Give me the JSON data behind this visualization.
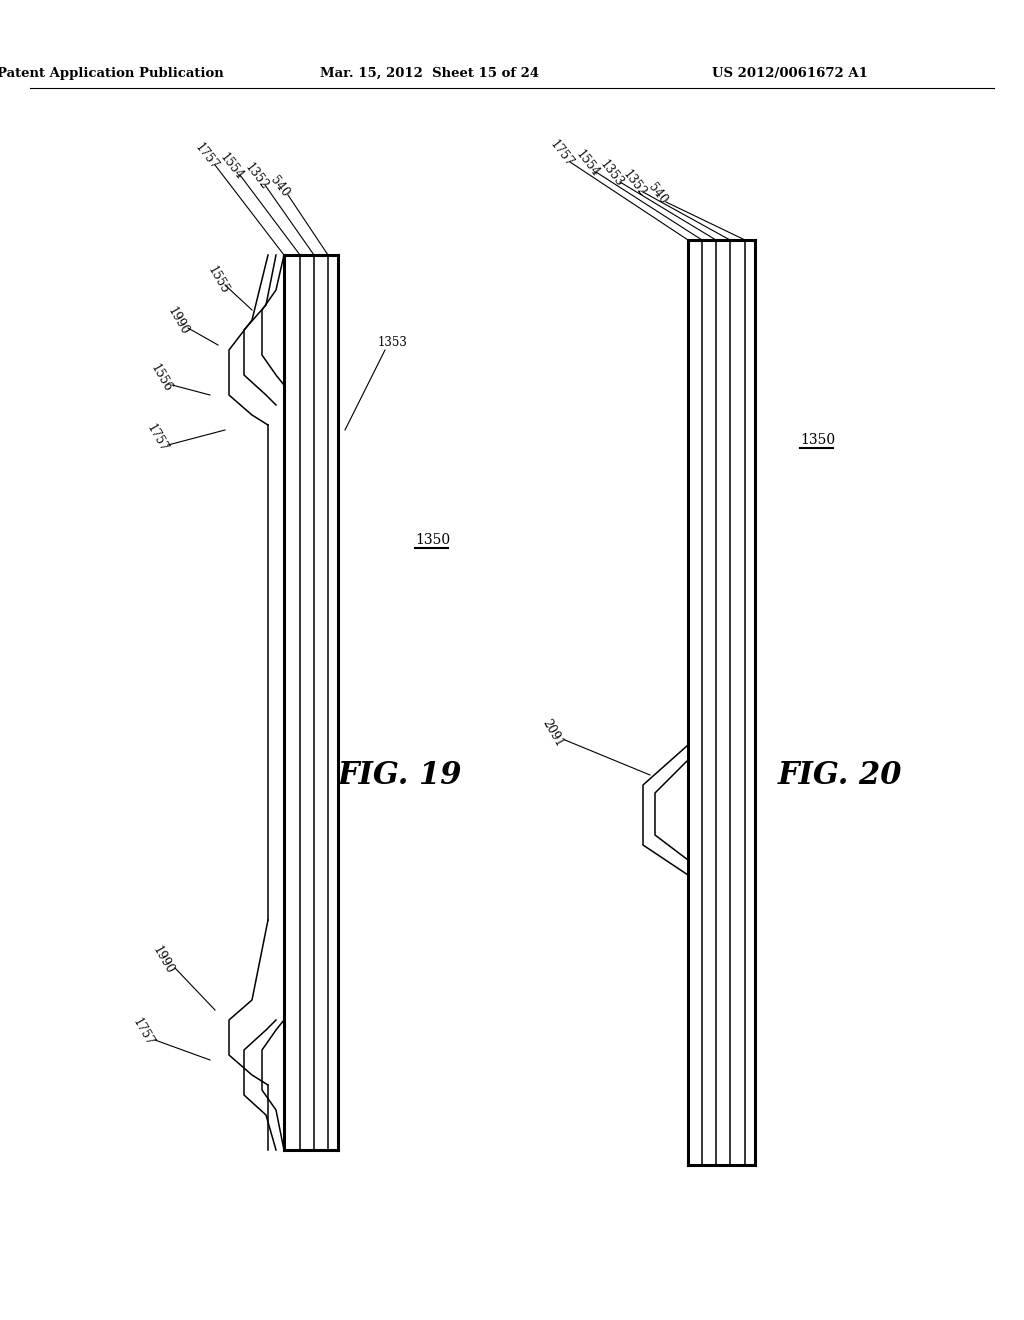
{
  "bg_color": "#ffffff",
  "header_left": "Patent Application Publication",
  "header_mid": "Mar. 15, 2012  Sheet 15 of 24",
  "header_right": "US 2012/0061672 A1",
  "fig19_label": "FIG. 19",
  "fig20_label": "FIG. 20",
  "fig19_ref": "1350",
  "fig20_ref": "1350",
  "labels_fig19_top": [
    "1757",
    "1554",
    "1352",
    "540"
  ],
  "label_1353_fig19": "1353",
  "labels_fig20_top": [
    "1757",
    "1554",
    "1353",
    "1352",
    "540"
  ],
  "label_2091": "2091",
  "label_1990_top": "1990",
  "label_1555": "1555",
  "label_1556": "1556",
  "label_1757_mid": "1757",
  "label_1990_bot": "1990",
  "label_1757_bot": "1757"
}
